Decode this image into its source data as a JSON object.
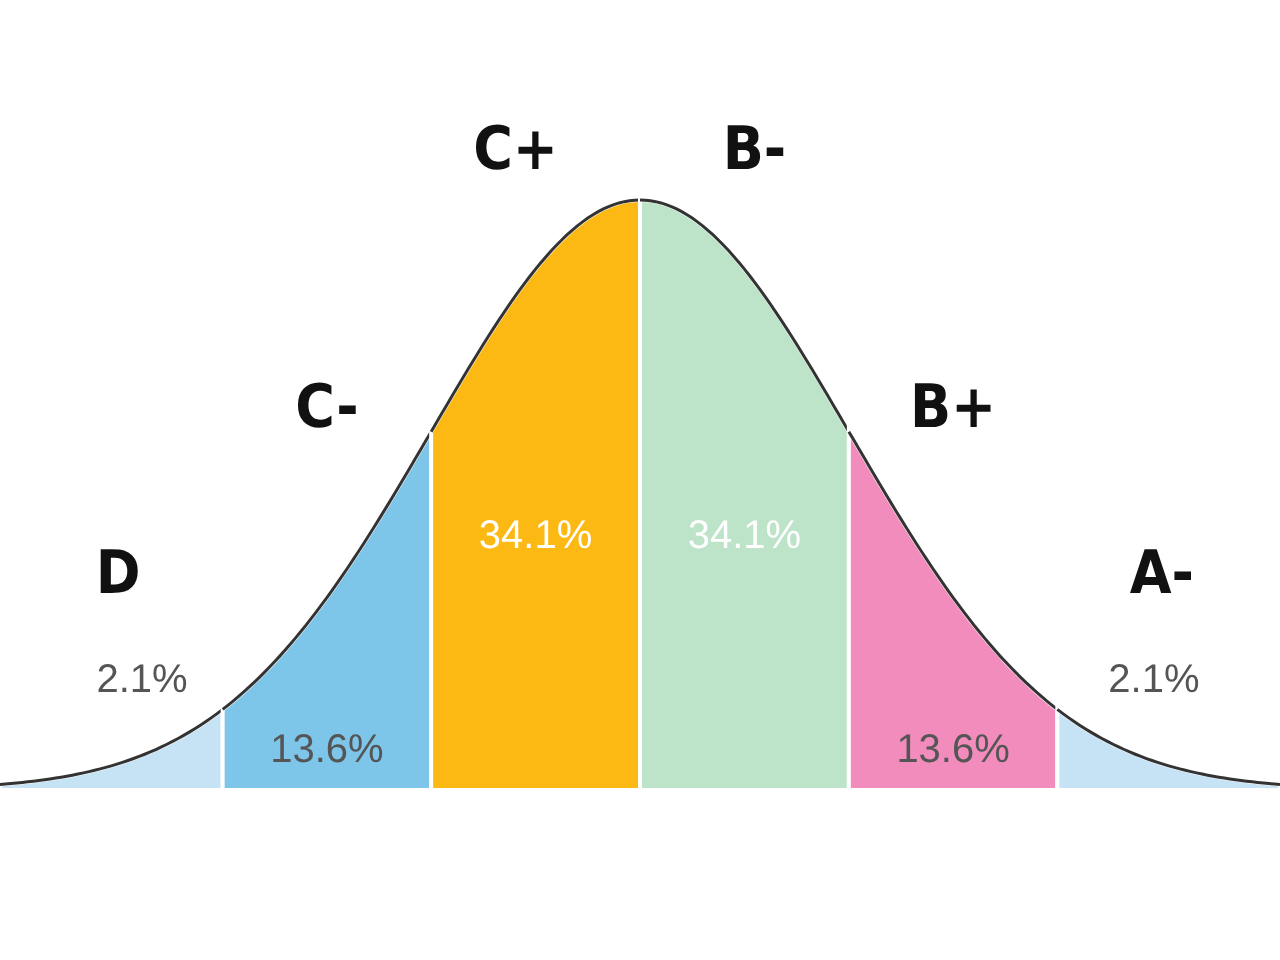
{
  "chart_data": {
    "type": "other",
    "categories": [
      "D",
      "C-",
      "C+",
      "B-",
      "B+",
      "A-"
    ],
    "values": [
      2.1,
      13.6,
      34.1,
      34.1,
      13.6,
      2.1
    ],
    "value_labels": [
      "2.1%",
      "13.6%",
      "34.1%",
      "34.1%",
      "13.6%",
      "2.1%"
    ],
    "colors": [
      "#c6e2f5",
      "#7ec5ea",
      "#fdb913",
      "#bde3c9",
      "#f18cbc",
      "#c6e2f5"
    ]
  }
}
